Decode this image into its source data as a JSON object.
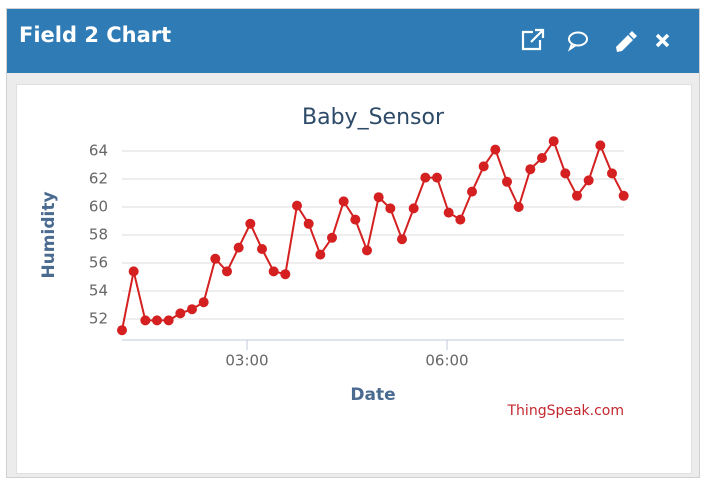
{
  "header": {
    "title": "Field 2 Chart"
  },
  "chart_data": {
    "type": "line",
    "title": "Baby_Sensor",
    "xlabel": "Date",
    "ylabel": "Humidity",
    "credit": "ThingSpeak.com",
    "x": [
      1.125,
      1.3,
      1.475,
      1.65,
      1.825,
      2,
      2.175,
      2.35,
      2.525,
      2.7,
      2.875,
      3.05,
      3.225,
      3.4,
      3.575,
      3.75,
      3.925,
      4.1,
      4.275,
      4.45,
      4.625,
      4.8,
      4.975,
      5.15,
      5.325,
      5.5,
      5.675,
      5.85,
      6.025,
      6.2,
      6.375,
      6.55,
      6.725,
      6.9,
      7.075,
      7.25,
      7.425,
      7.6,
      7.775,
      7.95,
      8.125,
      8.3,
      8.475,
      8.65
    ],
    "series": [
      {
        "name": "Humidity",
        "color": "#d42020",
        "values": [
          51.2,
          55.4,
          51.9,
          51.9,
          51.9,
          52.4,
          52.7,
          53.2,
          56.3,
          55.4,
          57.1,
          58.8,
          57.0,
          55.4,
          55.2,
          60.1,
          58.8,
          56.6,
          57.8,
          60.4,
          59.1,
          56.9,
          60.7,
          59.9,
          57.7,
          59.9,
          62.1,
          62.1,
          59.6,
          59.1,
          61.1,
          62.9,
          64.1,
          61.8,
          60.0,
          62.7,
          63.5,
          64.7,
          62.4,
          60.8,
          61.9,
          64.4,
          62.4,
          60.8
        ]
      }
    ],
    "xlim": [
      1.125,
      8.655
    ],
    "xticks": [
      {
        "value": 3,
        "label": "03:00"
      },
      {
        "value": 6,
        "label": "06:00"
      }
    ],
    "ylim": [
      50.5,
      65.5
    ],
    "yticks": [
      52,
      54,
      56,
      58,
      60,
      62,
      64
    ],
    "grid": true
  }
}
